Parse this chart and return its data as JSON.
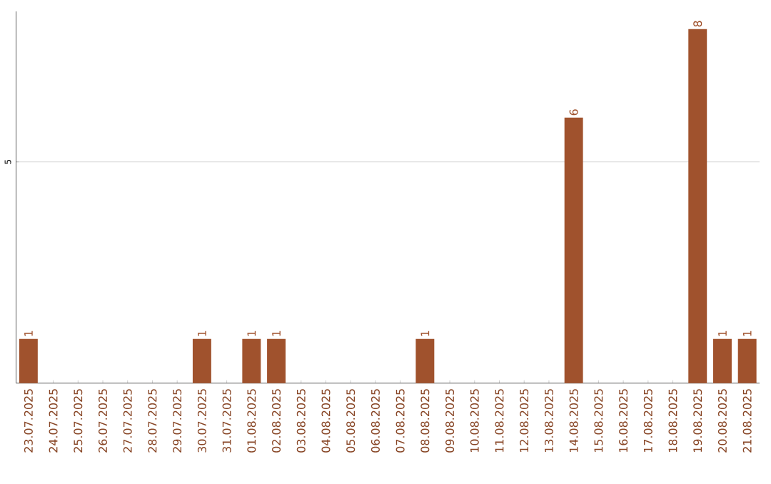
{
  "chart_data": {
    "type": "bar",
    "categories": [
      "23.07.2025",
      "24.07.2025",
      "25.07.2025",
      "26.07.2025",
      "27.07.2025",
      "28.07.2025",
      "29.07.2025",
      "30.07.2025",
      "31.07.2025",
      "01.08.2025",
      "02.08.2025",
      "03.08.2025",
      "04.08.2025",
      "05.08.2025",
      "06.08.2025",
      "07.08.2025",
      "08.08.2025",
      "09.08.2025",
      "10.08.2025",
      "11.08.2025",
      "12.08.2025",
      "13.08.2025",
      "14.08.2025",
      "15.08.2025",
      "16.08.2025",
      "17.08.2025",
      "18.08.2025",
      "19.08.2025",
      "20.08.2025",
      "21.08.2025"
    ],
    "values": [
      1,
      0,
      0,
      0,
      0,
      0,
      0,
      1,
      0,
      1,
      1,
      0,
      0,
      0,
      0,
      0,
      1,
      0,
      0,
      0,
      0,
      0,
      6,
      0,
      0,
      0,
      0,
      8,
      1,
      1
    ],
    "value_labels": [
      "1",
      null,
      null,
      null,
      null,
      null,
      null,
      "1",
      null,
      "1",
      "1",
      null,
      null,
      null,
      null,
      null,
      "1",
      null,
      null,
      null,
      null,
      null,
      "6",
      null,
      null,
      null,
      null,
      "8",
      "1",
      "1"
    ],
    "color": "#a0522d",
    "ylim": [
      0,
      8.4
    ],
    "yticks": [
      5
    ],
    "grid": "y"
  }
}
